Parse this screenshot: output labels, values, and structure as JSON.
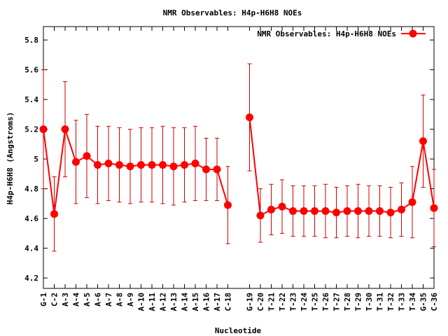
{
  "chart_data": {
    "type": "line",
    "title": "NMR Observables: H4p-H6H8 NOEs",
    "xlabel": "Nucleotide",
    "ylabel": "H4p-H6H8 (Angstroms)",
    "ylim": [
      4.13,
      5.89
    ],
    "yticks": [
      "4.2",
      "4.4",
      "4.6",
      "4.8",
      "5",
      "5.2",
      "5.4",
      "5.6",
      "5.8"
    ],
    "grid": false,
    "legend_position": "top-right",
    "series": [
      {
        "name": "NMR Observables: H4p-H6H8 NOEs",
        "color": "#ff0000",
        "error_color": "#cc0000",
        "segments": [
          [
            {
              "label": "G-1",
              "y": 5.2,
              "err": 0.4
            },
            {
              "label": "C-2",
              "y": 4.63,
              "err": 0.25
            },
            {
              "label": "A-3",
              "y": 5.2,
              "err": 0.32
            },
            {
              "label": "A-4",
              "y": 4.98,
              "err": 0.28
            },
            {
              "label": "A-5",
              "y": 5.02,
              "err": 0.28
            },
            {
              "label": "A-6",
              "y": 4.96,
              "err": 0.26
            },
            {
              "label": "A-7",
              "y": 4.97,
              "err": 0.25
            },
            {
              "label": "A-8",
              "y": 4.96,
              "err": 0.25
            },
            {
              "label": "A-9",
              "y": 4.95,
              "err": 0.25
            },
            {
              "label": "A-10",
              "y": 4.96,
              "err": 0.25
            },
            {
              "label": "A-11",
              "y": 4.96,
              "err": 0.25
            },
            {
              "label": "A-12",
              "y": 4.96,
              "err": 0.26
            },
            {
              "label": "A-13",
              "y": 4.95,
              "err": 0.26
            },
            {
              "label": "A-14",
              "y": 4.96,
              "err": 0.25
            },
            {
              "label": "A-15",
              "y": 4.97,
              "err": 0.25
            },
            {
              "label": "A-16",
              "y": 4.93,
              "err": 0.21
            },
            {
              "label": "A-17",
              "y": 4.93,
              "err": 0.21
            },
            {
              "label": "C-18",
              "y": 4.69,
              "err": 0.26
            }
          ],
          [
            {
              "label": "G-19",
              "y": 5.28,
              "err": 0.36
            },
            {
              "label": "C-20",
              "y": 4.62,
              "err": 0.18
            },
            {
              "label": "T-21",
              "y": 4.66,
              "err": 0.17
            },
            {
              "label": "T-22",
              "y": 4.68,
              "err": 0.18
            },
            {
              "label": "T-23",
              "y": 4.65,
              "err": 0.17
            },
            {
              "label": "T-24",
              "y": 4.65,
              "err": 0.17
            },
            {
              "label": "T-25",
              "y": 4.65,
              "err": 0.17
            },
            {
              "label": "T-26",
              "y": 4.65,
              "err": 0.18
            },
            {
              "label": "T-27",
              "y": 4.64,
              "err": 0.17
            },
            {
              "label": "T-28",
              "y": 4.65,
              "err": 0.17
            },
            {
              "label": "T-29",
              "y": 4.65,
              "err": 0.18
            },
            {
              "label": "T-30",
              "y": 4.65,
              "err": 0.17
            },
            {
              "label": "T-31",
              "y": 4.65,
              "err": 0.17
            },
            {
              "label": "T-32",
              "y": 4.64,
              "err": 0.17
            },
            {
              "label": "T-33",
              "y": 4.66,
              "err": 0.18
            },
            {
              "label": "T-34",
              "y": 4.71,
              "err": 0.24
            },
            {
              "label": "G-35",
              "y": 5.12,
              "err": 0.31
            },
            {
              "label": "C-36",
              "y": 4.67,
              "err": 0.26
            }
          ]
        ]
      }
    ]
  }
}
